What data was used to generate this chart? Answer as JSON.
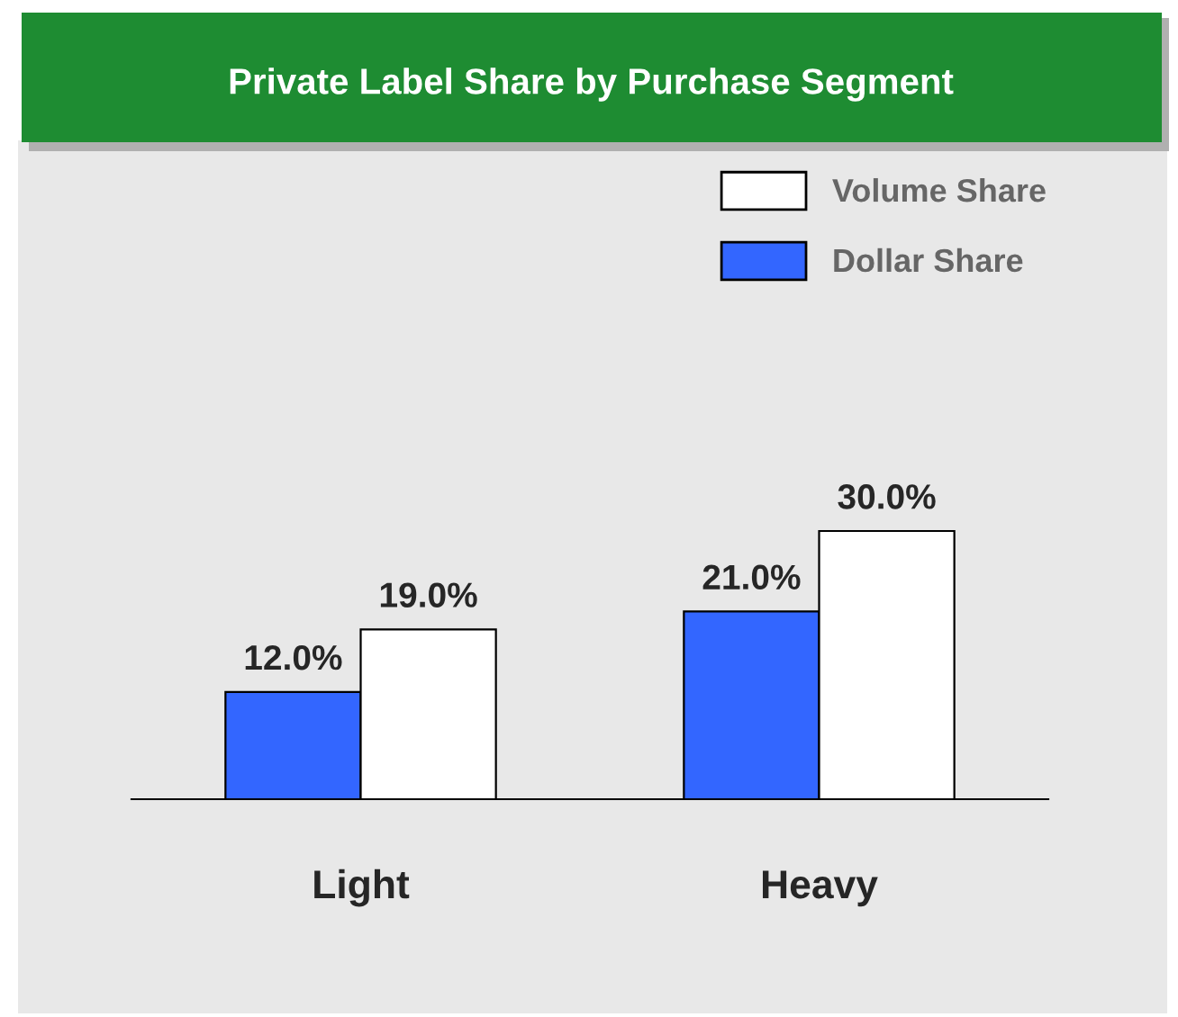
{
  "chart_data": {
    "type": "bar",
    "title": "Private Label Share by Purchase Segment",
    "categories": [
      "Light",
      "Heavy"
    ],
    "series": [
      {
        "name": "Dollar Share",
        "color": "#3366ff",
        "values": [
          12.0,
          21.0
        ],
        "value_labels": [
          "12.0%",
          "21.0%"
        ]
      },
      {
        "name": "Volume Share",
        "color": "#ffffff",
        "values": [
          19.0,
          30.0
        ],
        "value_labels": [
          "19.0%",
          "30.0%"
        ]
      }
    ],
    "legend": "top right"
  }
}
